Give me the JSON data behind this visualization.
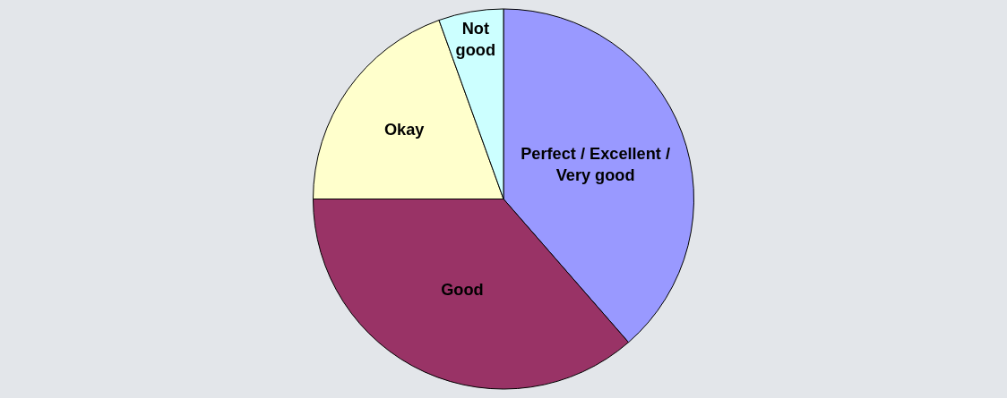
{
  "chart_data": {
    "type": "pie",
    "categories": [
      "Perfect / Excellent / Very good",
      "Good",
      "Okay",
      "Not good"
    ],
    "values": [
      38.6,
      36.4,
      19.5,
      5.5
    ],
    "colors": [
      "#9999ff",
      "#993366",
      "#ffffcc",
      "#ccffff"
    ],
    "legend": false
  }
}
